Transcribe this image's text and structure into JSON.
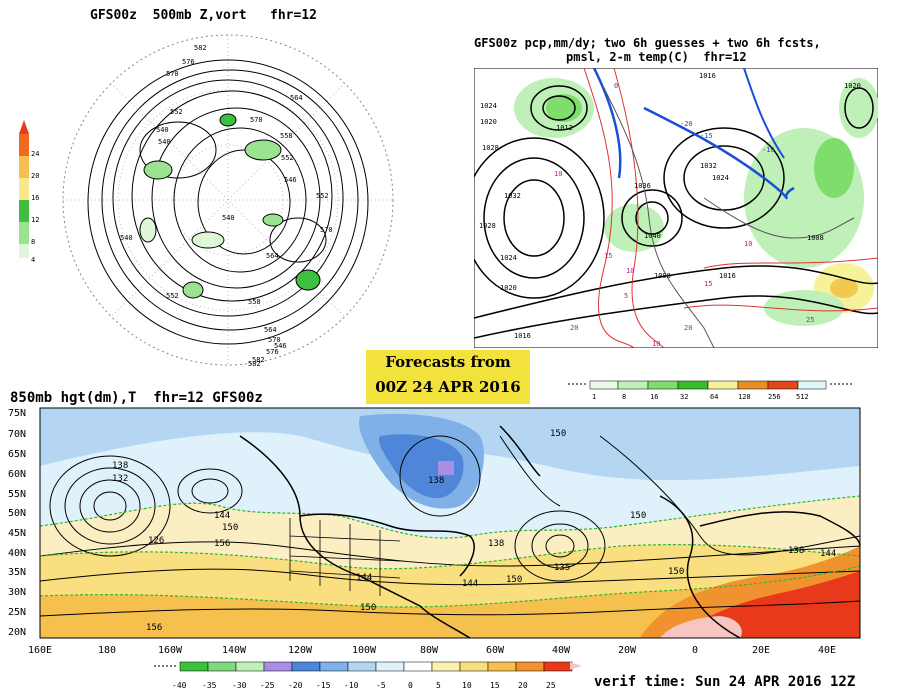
{
  "panel_500mb": {
    "title": "GFS00z  500mb Z,vort   fhr=12",
    "colorbar_ticks": [
      "24",
      "20",
      "16",
      "12",
      "8",
      "4"
    ],
    "contour_labels": [
      "582",
      "576",
      "570",
      "564",
      "558",
      "552",
      "546",
      "540",
      "552",
      "570",
      "582",
      "576",
      "570",
      "564",
      "558",
      "552",
      "540",
      "564",
      "570",
      "540",
      "552",
      "546",
      "540",
      "582"
    ]
  },
  "panel_precip": {
    "title_line1": "GFS00z pcp,mm/dy; two 6h guesses + two 6h fcsts,",
    "title_line2": "pmsl, 2-m temp(C)  fhr=12",
    "pressure_labels": [
      "1024",
      "1012",
      "1028",
      "1032",
      "1020",
      "1024",
      "1020",
      "1016",
      "1036",
      "1040",
      "1008",
      "1016",
      "1024",
      "1008",
      "1032",
      "1028",
      "1020",
      "1016"
    ],
    "temp_labels": [
      "10",
      "15",
      "20",
      "10",
      "5",
      "0",
      "-20",
      "-15",
      "-10",
      "10",
      "15",
      "20",
      "25",
      "10"
    ]
  },
  "forecast_box": {
    "line1": "Forecasts from",
    "line2": "00Z 24 APR 2016"
  },
  "precip_scale": {
    "ticks": [
      "1",
      "8",
      "16",
      "32",
      "64",
      "128",
      "256",
      "512"
    ],
    "colors": [
      "#ecfbe9",
      "#bff0b7",
      "#7fdd6c",
      "#38c02c",
      "#f6f29a",
      "#f2c94e",
      "#ea8d24",
      "#e04818",
      "#dff7f8"
    ]
  },
  "panel_850mb": {
    "title": "850mb hgt(dm),T  fhr=12 GFS00z",
    "lat_labels": [
      "75N",
      "70N",
      "65N",
      "60N",
      "55N",
      "50N",
      "45N",
      "40N",
      "35N",
      "30N",
      "25N",
      "20N"
    ],
    "lon_labels": [
      "160E",
      "180",
      "160W",
      "140W",
      "120W",
      "100W",
      "80W",
      "60W",
      "40W",
      "20W",
      "0",
      "20E",
      "40E"
    ],
    "height_labels": [
      "138",
      "132",
      "126",
      "144",
      "150",
      "156",
      "138",
      "144",
      "150",
      "156",
      "138",
      "144",
      "150",
      "135",
      "150",
      "138",
      "144",
      "150",
      "150"
    ]
  },
  "temp_scale": {
    "ticks": [
      "-40",
      "-35",
      "-30",
      "-25",
      "-20",
      "-15",
      "-10",
      "-5",
      "0",
      "5",
      "10",
      "15",
      "20",
      "25"
    ],
    "colors": [
      "#3fbf3f",
      "#7fd97f",
      "#bff0b7",
      "#a98ee6",
      "#4f86d9",
      "#7fb1e8",
      "#b4d6f2",
      "#dff1fb",
      "#ffffff",
      "#fbf2b0",
      "#f9df7f",
      "#f6c04f",
      "#f0932f",
      "#e8391a"
    ]
  },
  "verif_time": "verif time: Sun 24 APR 2016 12Z"
}
